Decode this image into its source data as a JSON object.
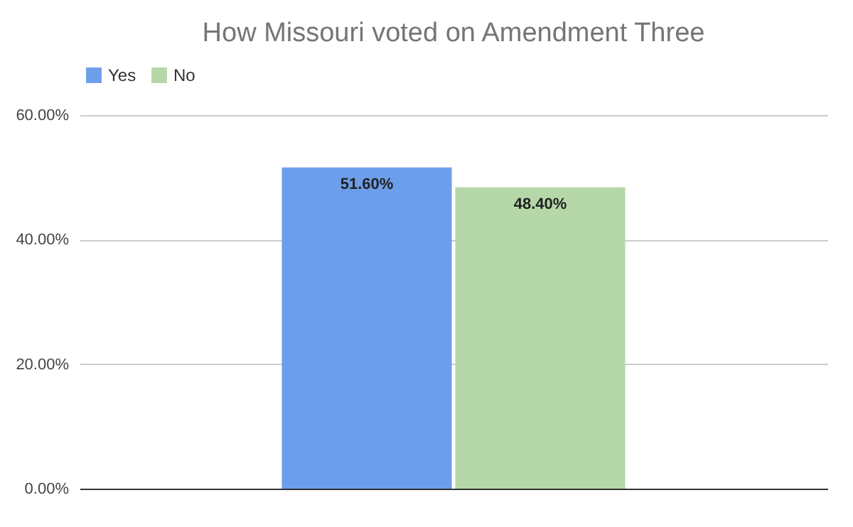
{
  "chart_data": {
    "type": "bar",
    "title": "How Missouri voted on Amendment Three",
    "categories": [
      null
    ],
    "series": [
      {
        "name": "Yes",
        "color": "#6d9eeb",
        "values": [
          51.6
        ],
        "value_labels": [
          "51.60%"
        ]
      },
      {
        "name": "No",
        "color": "#b6d7a8",
        "values": [
          48.4
        ],
        "value_labels": [
          "48.40%"
        ]
      }
    ],
    "ylim": [
      0,
      60
    ],
    "yticks": [
      {
        "value": 0,
        "label": "0.00%"
      },
      {
        "value": 20,
        "label": "20.00%"
      },
      {
        "value": 40,
        "label": "40.00%"
      },
      {
        "value": 60,
        "label": "60.00%"
      }
    ],
    "grid": "y",
    "legend": "top",
    "tick_labels": "y"
  }
}
